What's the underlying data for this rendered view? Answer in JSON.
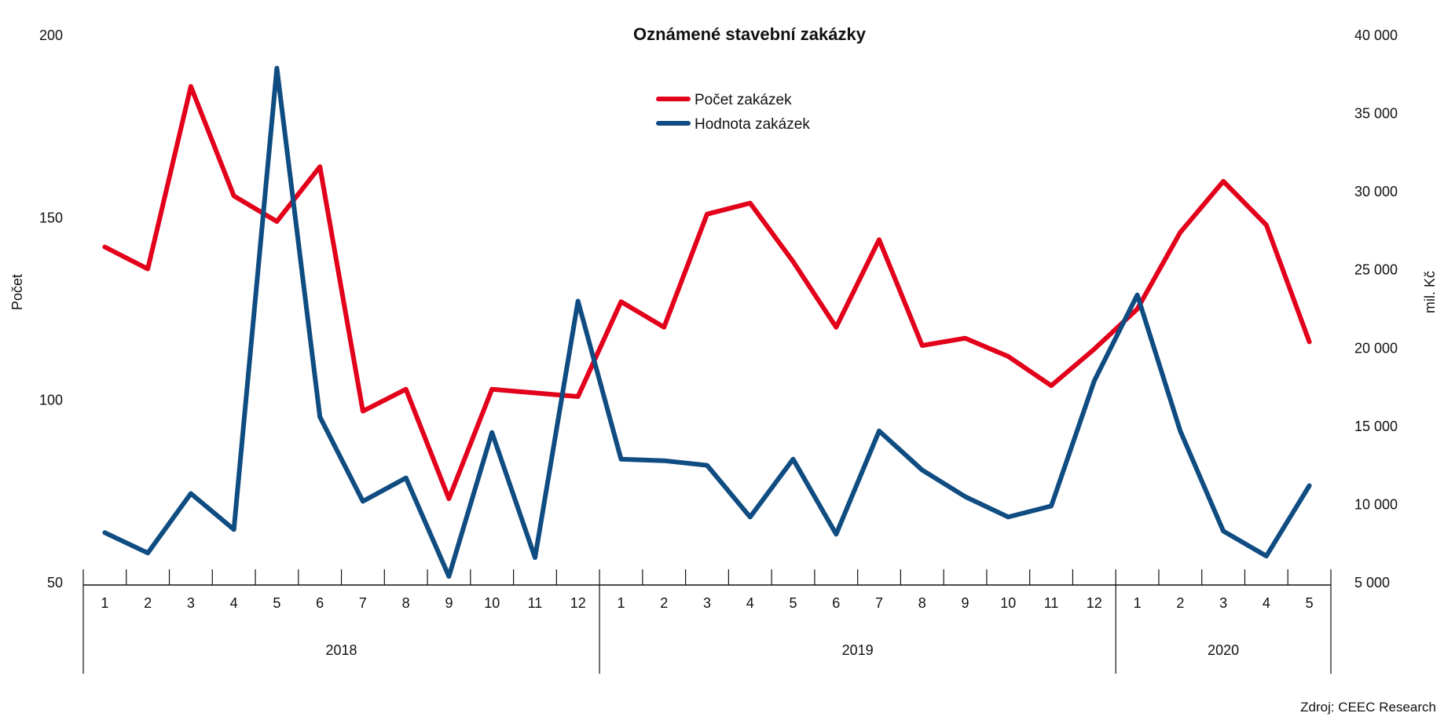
{
  "chart_data": {
    "type": "line",
    "title": "Oznámené stavební zakázky",
    "ylabel": "Počet",
    "y2label": "mil. Kč",
    "ylim": [
      50,
      200
    ],
    "yticks": [
      "200",
      "150",
      "100",
      "50"
    ],
    "y2lim": [
      5000,
      40000
    ],
    "y2ticks": [
      "40 000",
      "35 000",
      "30 000",
      "25 000",
      "20 000",
      "15 000",
      "10 000",
      "5 000"
    ],
    "months": [
      "1",
      "2",
      "3",
      "4",
      "5",
      "6",
      "7",
      "8",
      "9",
      "10",
      "11",
      "12",
      "1",
      "2",
      "3",
      "4",
      "5",
      "6",
      "7",
      "8",
      "9",
      "10",
      "11",
      "12",
      "1",
      "2",
      "3",
      "4",
      "5"
    ],
    "years": [
      {
        "label": "2018",
        "count": 12
      },
      {
        "label": "2019",
        "count": 12
      },
      {
        "label": "2020",
        "count": 5
      }
    ],
    "series": [
      {
        "name": "Počet zakázek",
        "axis": "left",
        "color": "#e2001a",
        "values": [
          142,
          136,
          186,
          156,
          149,
          164,
          97,
          103,
          73,
          103,
          102,
          101,
          127,
          120,
          151,
          154,
          138,
          120,
          144,
          115,
          117,
          112,
          104,
          114,
          125,
          146,
          160,
          148,
          116
        ]
      },
      {
        "name": "Hodnota zakázek",
        "axis": "right",
        "color": "#0f4c81",
        "values": [
          8200,
          6900,
          10700,
          8400,
          37900,
          15600,
          10200,
          11700,
          5400,
          14600,
          6600,
          23000,
          12900,
          12800,
          12500,
          9200,
          12900,
          8100,
          14700,
          12200,
          10500,
          9200,
          9900,
          17900,
          23400,
          14700,
          8300,
          6700,
          11200
        ]
      }
    ],
    "legend": "top-center",
    "grid": false,
    "source": "Zdroj: CEEC Research"
  }
}
